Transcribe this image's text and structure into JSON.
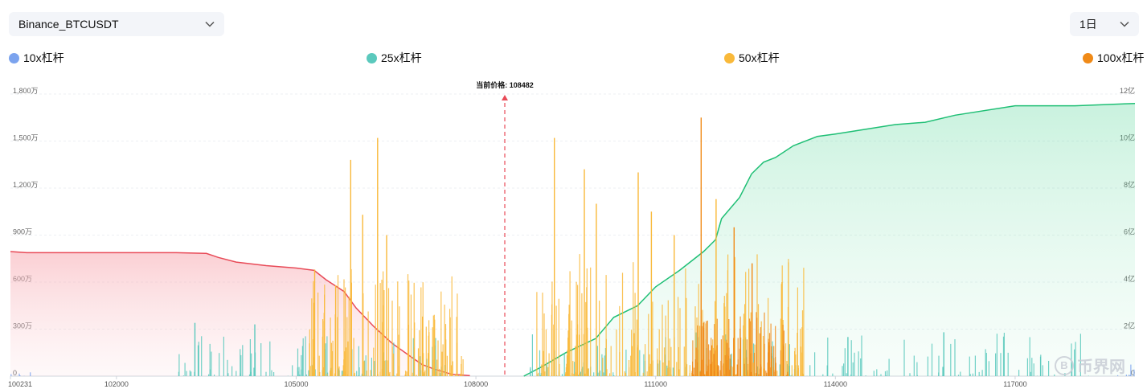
{
  "controls": {
    "pair": "Binance_BTCUSDT",
    "interval": "1日"
  },
  "legend": [
    {
      "label": "10x杠杆",
      "color": "#7ba3ee"
    },
    {
      "label": "25x杠杆",
      "color": "#5bc9bd"
    },
    {
      "label": "50x杠杆",
      "color": "#f9b93a"
    },
    {
      "label": "100x杠杆",
      "color": "#f08a17"
    }
  ],
  "watermark": {
    "text": "币界网",
    "icon": "coin-b-icon"
  },
  "chart_data": {
    "type": "bar",
    "current_price_label": "当前价格: 108482",
    "current_price": 108482,
    "x_range": [
      100231,
      119000
    ],
    "x_ticks": [
      "100231",
      "102000",
      "105000",
      "108000",
      "111000",
      "114000",
      "117000"
    ],
    "x_tick_values": [
      100231,
      102000,
      105000,
      108000,
      111000,
      114000,
      117000
    ],
    "y_left_ticks": [
      "0",
      "300万",
      "600万",
      "900万",
      "1,200万",
      "1,500万",
      "1,800万"
    ],
    "y_left_range": [
      0,
      1800
    ],
    "y_right_ticks": [
      "0",
      "2亿",
      "4亿",
      "6亿",
      "8亿",
      "10亿",
      "12亿"
    ],
    "y_right_range": [
      0,
      12
    ],
    "grid": true,
    "colors": {
      "short_cum": "#e84a57",
      "long_cum": "#1fbf75",
      "price_line": "#e84a57"
    },
    "cumulative_short": {
      "name": "",
      "x": [
        100231,
        100500,
        101000,
        102000,
        103000,
        103500,
        103700,
        104000,
        104500,
        105000,
        105300,
        105500,
        105800,
        106000,
        106300,
        106600,
        106900,
        107100,
        107300,
        107600,
        107900
      ],
      "y_yi": [
        5.3,
        5.25,
        5.25,
        5.25,
        5.25,
        5.22,
        5.05,
        4.85,
        4.7,
        4.6,
        4.5,
        4.1,
        3.6,
        2.9,
        2.1,
        1.4,
        0.85,
        0.5,
        0.3,
        0.08,
        0.02
      ]
    },
    "cumulative_long": {
      "name": "",
      "x": [
        108800,
        109100,
        109500,
        110000,
        110300,
        110700,
        111000,
        111400,
        111800,
        112000,
        112100,
        112400,
        112600,
        112800,
        113000,
        113300,
        113700,
        114000,
        114500,
        115000,
        115500,
        116000,
        117000,
        118000,
        119000
      ],
      "y_yi": [
        0.0,
        0.4,
        1.0,
        1.6,
        2.5,
        3.0,
        3.8,
        4.5,
        5.3,
        5.8,
        6.7,
        7.6,
        8.6,
        9.1,
        9.3,
        9.8,
        10.2,
        10.3,
        10.5,
        10.7,
        10.8,
        11.1,
        11.5,
        11.5,
        11.6
      ]
    },
    "liquidation_bars": [
      {
        "series": "50x杠杆",
        "x": 106350,
        "value_wan": 1520
      },
      {
        "series": "50x杠杆",
        "x": 105900,
        "value_wan": 1380
      },
      {
        "series": "50x杠杆",
        "x": 106100,
        "value_wan": 1030
      },
      {
        "series": "50x杠杆",
        "x": 106500,
        "value_wan": 900
      },
      {
        "series": "50x杠杆",
        "x": 105300,
        "value_wan": 680
      },
      {
        "series": "50x杠杆",
        "x": 105650,
        "value_wan": 580
      },
      {
        "series": "50x杠杆",
        "x": 107100,
        "value_wan": 380
      },
      {
        "series": "50x杠杆",
        "x": 109300,
        "value_wan": 1520
      },
      {
        "series": "50x杠杆",
        "x": 109800,
        "value_wan": 1320
      },
      {
        "series": "50x杠杆",
        "x": 110000,
        "value_wan": 1100
      },
      {
        "series": "50x杠杆",
        "x": 110700,
        "value_wan": 1300
      },
      {
        "series": "50x杠杆",
        "x": 110920,
        "value_wan": 1050
      },
      {
        "series": "50x杠杆",
        "x": 111300,
        "value_wan": 900
      },
      {
        "series": "50x杠杆",
        "x": 112000,
        "value_wan": 1130
      },
      {
        "series": "100x杠杆",
        "x": 111750,
        "value_wan": 1650
      },
      {
        "series": "100x杠杆",
        "x": 112300,
        "value_wan": 950
      },
      {
        "series": "100x杠杆",
        "x": 112600,
        "value_wan": 720
      },
      {
        "series": "50x杠杆",
        "x": 113100,
        "value_wan": 600
      },
      {
        "series": "25x杠杆",
        "x": 103300,
        "value_wan": 340
      },
      {
        "series": "25x杠杆",
        "x": 104300,
        "value_wan": 330
      },
      {
        "series": "25x杠杆",
        "x": 115800,
        "value_wan": 280
      },
      {
        "series": "25x杠杆",
        "x": 114200,
        "value_wan": 250
      }
    ]
  }
}
